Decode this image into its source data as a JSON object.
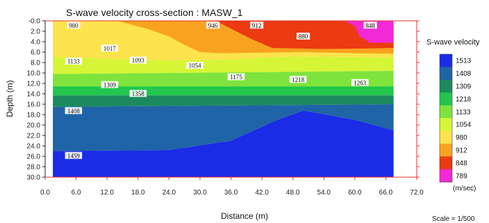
{
  "chart_data": {
    "type": "heatmap",
    "title": "S-wave velocity cross-section : MASW_1",
    "xlabel": "Distance (m)",
    "ylabel": "Depth (m)",
    "xlim": [
      0,
      72
    ],
    "ylim": [
      0,
      30
    ],
    "y_inverted": true,
    "x_ticks": [
      "0.0",
      "6.0",
      "12.0",
      "18.0",
      "24.0",
      "30.0",
      "36.0",
      "42.0",
      "48.0",
      "54.0",
      "60.0",
      "66.0",
      "72.0"
    ],
    "y_ticks": [
      "-0.0",
      "2.0",
      "4.0",
      "6.0",
      "8.0",
      "10.0",
      "12.0",
      "14.0",
      "16.0",
      "18.0",
      "20.0",
      "22.0",
      "24.0",
      "26.0",
      "28.0",
      "30.0"
    ],
    "data_extent_x": [
      1.5,
      67.5
    ],
    "colorbar": {
      "title": "S-wave velocity",
      "unit": "(m/sec)",
      "levels": [
        {
          "value": "1513",
          "color": "#1a2ce6"
        },
        {
          "value": "1408",
          "color": "#1f64a6"
        },
        {
          "value": "1309",
          "color": "#1c8a5e"
        },
        {
          "value": "1218",
          "color": "#22c64c"
        },
        {
          "value": "1133",
          "color": "#7fe33d"
        },
        {
          "value": "1054",
          "color": "#d6f536"
        },
        {
          "value": "980",
          "color": "#fde34d"
        },
        {
          "value": "912",
          "color": "#f9a220"
        },
        {
          "value": "848",
          "color": "#ec3a12"
        },
        {
          "value": "789",
          "color": "#f229d6"
        }
      ]
    },
    "regions": [
      {
        "value": 1513,
        "color": "#1a2ce6",
        "poly": [
          [
            1.5,
            30
          ],
          [
            1.5,
            25
          ],
          [
            24,
            24.8
          ],
          [
            36,
            23
          ],
          [
            45,
            19
          ],
          [
            50,
            17.2
          ],
          [
            60,
            19
          ],
          [
            67.5,
            21
          ],
          [
            67.5,
            30
          ]
        ]
      },
      {
        "value": 1408,
        "color": "#1f64a6",
        "poly": [
          [
            1.5,
            25
          ],
          [
            1.5,
            16.5
          ],
          [
            67.5,
            16
          ],
          [
            67.5,
            21
          ],
          [
            60,
            19
          ],
          [
            50,
            17.2
          ],
          [
            45,
            19
          ],
          [
            36,
            23
          ],
          [
            24,
            24.8
          ]
        ]
      },
      {
        "value": 1309,
        "color": "#1c8a5e",
        "poly": [
          [
            1.5,
            16.5
          ],
          [
            1.5,
            14.3
          ],
          [
            67.5,
            14.3
          ],
          [
            67.5,
            16
          ]
        ]
      },
      {
        "value": 1218,
        "color": "#22c64c",
        "poly": [
          [
            1.5,
            14.3
          ],
          [
            1.5,
            12.6
          ],
          [
            67.5,
            12.6
          ],
          [
            67.5,
            14.3
          ]
        ]
      },
      {
        "value": 1133,
        "color": "#7fe33d",
        "poly": [
          [
            1.5,
            12.6
          ],
          [
            1.5,
            10.2
          ],
          [
            67.5,
            9.6
          ],
          [
            67.5,
            12.6
          ]
        ]
      },
      {
        "value": 1054,
        "color": "#d6f536",
        "poly": [
          [
            1.5,
            10.2
          ],
          [
            1.5,
            6.8
          ],
          [
            12,
            7.3
          ],
          [
            24,
            7.6
          ],
          [
            36,
            7.4
          ],
          [
            48,
            6.8
          ],
          [
            67.5,
            7.0
          ],
          [
            67.5,
            9.6
          ]
        ]
      },
      {
        "value": 980,
        "color": "#fde34d",
        "poly": [
          [
            1.5,
            6.8
          ],
          [
            1.5,
            0
          ],
          [
            67.5,
            0
          ],
          [
            67.5,
            7.0
          ],
          [
            48,
            6.8
          ],
          [
            36,
            7.4
          ],
          [
            24,
            7.6
          ],
          [
            12,
            7.3
          ]
        ]
      },
      {
        "value": 912,
        "color": "#f9a220",
        "poly": [
          [
            14,
            0
          ],
          [
            20,
            1.6
          ],
          [
            24,
            3.0
          ],
          [
            27,
            4.6
          ],
          [
            30,
            6.0
          ],
          [
            34,
            6.2
          ],
          [
            42,
            6.1
          ],
          [
            50,
            6.0
          ],
          [
            60,
            6.2
          ],
          [
            67.5,
            6.3
          ],
          [
            67.5,
            0
          ]
        ]
      },
      {
        "value": 848,
        "color": "#ec3a12",
        "poly": [
          [
            33,
            0
          ],
          [
            36,
            1.5
          ],
          [
            40,
            3.5
          ],
          [
            44,
            5.2
          ],
          [
            54,
            5.4
          ],
          [
            62,
            5.3
          ],
          [
            67.5,
            5.2
          ],
          [
            67.5,
            0
          ]
        ]
      },
      {
        "value": 789,
        "color": "#f229d6",
        "poly": [
          [
            58,
            0
          ],
          [
            60,
            1.0
          ],
          [
            61,
            3.0
          ],
          [
            63,
            4.2
          ],
          [
            67.5,
            4.2
          ],
          [
            67.5,
            0
          ]
        ]
      }
    ],
    "annotations": [
      {
        "text": "980",
        "x": 5.5,
        "y": 0.9
      },
      {
        "text": "946",
        "x": 32.5,
        "y": 0.9
      },
      {
        "text": "912",
        "x": 41,
        "y": 0.9
      },
      {
        "text": "848",
        "x": 63,
        "y": 0.9
      },
      {
        "text": "880",
        "x": 50,
        "y": 3.0
      },
      {
        "text": "1017",
        "x": 12.5,
        "y": 5.3
      },
      {
        "text": "1133",
        "x": 5.5,
        "y": 7.8
      },
      {
        "text": "1093",
        "x": 18,
        "y": 7.6
      },
      {
        "text": "1054",
        "x": 29,
        "y": 8.6
      },
      {
        "text": "1175",
        "x": 37,
        "y": 10.8
      },
      {
        "text": "1218",
        "x": 49,
        "y": 11.3
      },
      {
        "text": "1263",
        "x": 61,
        "y": 11.9
      },
      {
        "text": "1309",
        "x": 12.5,
        "y": 12.3
      },
      {
        "text": "1358",
        "x": 18,
        "y": 14.0
      },
      {
        "text": "1408",
        "x": 5.5,
        "y": 17.3
      },
      {
        "text": "1459",
        "x": 5.5,
        "y": 25.9
      }
    ]
  },
  "footer": {
    "scale": "Scale = 1/500"
  }
}
